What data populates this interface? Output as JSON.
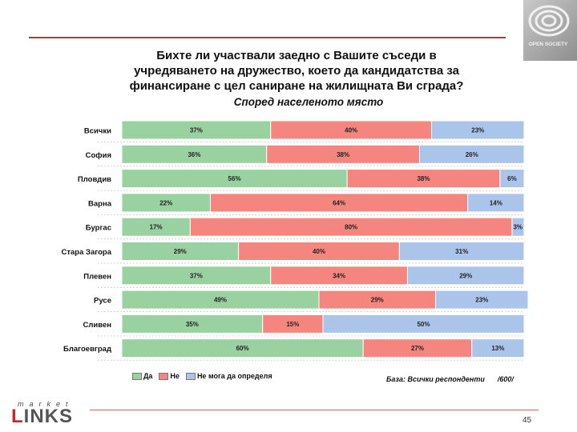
{
  "chart_data": {
    "type": "bar",
    "orientation": "horizontal",
    "stacked": true,
    "title": "Бихте ли участвали заедно с Вашите съседи в учредяването на дружество, което да кандидатства за финансиране с цел саниране на жилищната Ви сграда?",
    "subtitle": "Според населеното място",
    "categories": [
      "Всички",
      "София",
      "Пловдив",
      "Варна",
      "Бургас",
      "Стара Загора",
      "Плевен",
      "Русе",
      "Сливен",
      "Благоевград"
    ],
    "series": [
      {
        "name": "Да",
        "color": "#99d1a0",
        "values": [
          37,
          36,
          56,
          22,
          17,
          29,
          37,
          49,
          35,
          60
        ]
      },
      {
        "name": "Не",
        "color": "#f4867f",
        "values": [
          40,
          38,
          38,
          64,
          80,
          40,
          34,
          29,
          15,
          27
        ]
      },
      {
        "name": "Не мога да определя",
        "color": "#abc5ea",
        "values": [
          23,
          26,
          6,
          14,
          3,
          31,
          29,
          23,
          50,
          13
        ]
      }
    ],
    "value_suffix": "%",
    "base_note": "База: Всички респонденти",
    "base_n": "/600/"
  },
  "logo_text": "OPEN SOCIETY",
  "brand": {
    "small": "market",
    "big_first": "L",
    "big_rest": "INKS"
  },
  "page_number": "45"
}
